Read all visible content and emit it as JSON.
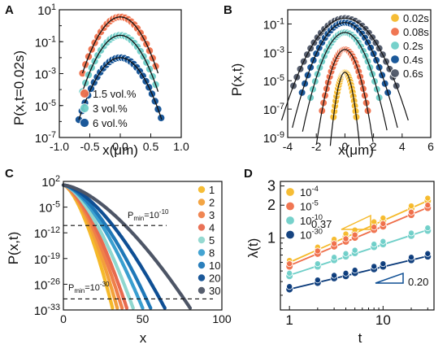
{
  "panels": {
    "A": {
      "label": "A",
      "ylabel": "P(x,t=0.02s)",
      "xlabel": "x(μm)",
      "yticks": [
        {
          "v": 1,
          "t": "10",
          "e": "1"
        },
        {
          "v": -1,
          "t": "10",
          "e": "-1"
        },
        {
          "v": -3,
          "t": "10",
          "e": "-3"
        },
        {
          "v": -5,
          "t": "10",
          "e": "-5"
        },
        {
          "v": -7,
          "t": "10",
          "e": "-7"
        }
      ],
      "xticks": [
        "-1.0",
        "-0.5",
        "0.0",
        "0.5",
        "1.0"
      ],
      "legend": [
        "1.5 vol.%",
        "3 vol.%",
        "6 vol.%"
      ]
    },
    "B": {
      "label": "B",
      "ylabel": "P(x,t)",
      "xlabel": "x(μm)",
      "yticks": [
        {
          "v": -1,
          "t": "10",
          "e": "-1"
        },
        {
          "v": -3,
          "t": "10",
          "e": "-3"
        },
        {
          "v": -5,
          "t": "10",
          "e": "-5"
        },
        {
          "v": -7,
          "t": "10",
          "e": "-7"
        },
        {
          "v": -9,
          "t": "10",
          "e": "-9"
        }
      ],
      "xticks": [
        "-4",
        "-2",
        "0",
        "2",
        "4",
        "6"
      ],
      "legend": [
        "0.02s",
        "0.08s",
        "0.2s",
        "0.4s",
        "0.6s"
      ]
    },
    "C": {
      "label": "C",
      "ylabel": "P(x,t)",
      "xlabel": "x",
      "yticks": [
        {
          "v": 2,
          "t": "10",
          "e": "2"
        },
        {
          "v": -5,
          "t": "10",
          "e": "-5"
        },
        {
          "v": -12,
          "t": "10",
          "e": "-12"
        },
        {
          "v": -19,
          "t": "10",
          "e": "-19"
        },
        {
          "v": -26,
          "t": "10",
          "e": "-26"
        },
        {
          "v": -33,
          "t": "10",
          "e": "-33"
        }
      ],
      "xticks": [
        "0",
        "50",
        "100"
      ],
      "legend": [
        "1",
        "2",
        "3",
        "4",
        "5",
        "8",
        "10",
        "20",
        "30"
      ],
      "ann_top": "P",
      "ann_top_sub": "min",
      "ann_top_rest": "=10",
      "ann_top_exp": "-10",
      "ann_bot": "P",
      "ann_bot_sub": "min",
      "ann_bot_rest": "=10",
      "ann_bot_exp": "-30"
    },
    "D": {
      "label": "D",
      "ylabel": "λ(t)",
      "xlabel": "t",
      "yticks": [
        "3",
        "2",
        "1"
      ],
      "xticks": [
        "1",
        "10"
      ],
      "legend": [
        {
          "t": "10",
          "e": "-4"
        },
        {
          "t": "10",
          "e": "-5"
        },
        {
          "t": "10",
          "e": "-10"
        },
        {
          "t": "10",
          "e": "-30"
        }
      ],
      "slope_top": "0.37",
      "slope_bot": "0.20"
    }
  },
  "colors": {
    "yellow": "#f5b92a",
    "orange": "#ef6f4a",
    "teal": "#6fcfc8",
    "blue": "#0f4f94",
    "gray": "#4d5566",
    "navy": "#0a3a7a"
  },
  "chart_data": [
    {
      "panel": "A",
      "type": "scatter",
      "xlabel": "x(μm)",
      "ylabel": "P(x,t=0.02s)",
      "xlim": [
        -1.0,
        1.0
      ],
      "ylim": [
        -7,
        1
      ],
      "yscale": "log10 (values are exponents)",
      "series": [
        {
          "name": "1.5 vol.%",
          "color": "orange",
          "peak_log": 0.55,
          "width": 0.33,
          "xrange": [
            -0.62,
            0.62
          ]
        },
        {
          "name": "3 vol.%",
          "color": "teal",
          "peak_log": -0.6,
          "width": 0.33,
          "xrange": [
            -0.62,
            0.62
          ]
        },
        {
          "name": "6 vol.%",
          "color": "blue",
          "peak_log": -2.0,
          "width": 0.345,
          "xrange": [
            -0.68,
            0.68
          ]
        }
      ]
    },
    {
      "panel": "B",
      "type": "scatter",
      "xlabel": "x(μm)",
      "ylabel": "P(x,t)",
      "xlim": [
        -4,
        6
      ],
      "ylim": [
        -9,
        0
      ],
      "yscale": "log10 (values are exponents)",
      "series": [
        {
          "name": "0.02s",
          "color": "yellow",
          "peak_log": -4.4,
          "width": 0.45,
          "xrange": [
            -0.8,
            0.8
          ]
        },
        {
          "name": "0.08s",
          "color": "orange",
          "peak_log": -2.8,
          "width": 0.77,
          "xrange": [
            -1.6,
            1.6
          ]
        },
        {
          "name": "0.2s",
          "color": "teal",
          "peak_log": -1.6,
          "width": 1.12,
          "xrange": [
            -2.4,
            2.4
          ]
        },
        {
          "name": "0.4s",
          "color": "blue",
          "peak_log": -0.9,
          "width": 1.35,
          "xrange": [
            -3.0,
            3.0
          ]
        },
        {
          "name": "0.6s",
          "color": "gray",
          "peak_log": -0.6,
          "width": 1.65,
          "xrange": [
            -3.6,
            3.6
          ]
        }
      ]
    },
    {
      "panel": "C",
      "type": "line",
      "xlabel": "x",
      "ylabel": "P(x,t)",
      "xlim": [
        0,
        100
      ],
      "ylim": [
        -33,
        2
      ],
      "yscale": "log10 (values are exponents)",
      "thresholds": [
        -10,
        -30
      ],
      "series": [
        {
          "name": "1",
          "color": "#f5b92a",
          "x_end": 31
        },
        {
          "name": "2",
          "color": "#f2a03a",
          "x_end": 34
        },
        {
          "name": "3",
          "color": "#ef7f4a",
          "x_end": 37
        },
        {
          "name": "4",
          "color": "#e86a4e",
          "x_end": 40
        },
        {
          "name": "5",
          "color": "#8fd7cf",
          "x_end": 44
        },
        {
          "name": "8",
          "color": "#3a9fd0",
          "x_end": 50
        },
        {
          "name": "10",
          "color": "#1f78b8",
          "x_end": 55
        },
        {
          "name": "20",
          "color": "#0f4f94",
          "x_end": 64
        },
        {
          "name": "30",
          "color": "#4d5566",
          "x_end": 80
        }
      ]
    },
    {
      "panel": "D",
      "type": "scatter",
      "xlabel": "t",
      "ylabel": "λ(t)",
      "xscale": "log",
      "yscale": "log",
      "xlim": [
        0.8,
        35
      ],
      "ylim": [
        0.22,
        3.3
      ],
      "t_values": [
        1,
        2,
        3,
        4,
        5,
        8,
        10,
        20,
        30
      ],
      "series": [
        {
          "name": "10^-4",
          "color": "yellow",
          "values": [
            0.59,
            0.78,
            0.92,
            1.03,
            1.12,
            1.33,
            1.44,
            1.86,
            2.19
          ]
        },
        {
          "name": "10^-5",
          "color": "orange",
          "values": [
            0.55,
            0.72,
            0.84,
            0.93,
            1.01,
            1.19,
            1.28,
            1.63,
            1.89
          ]
        },
        {
          "name": "10^-10",
          "color": "teal",
          "values": [
            0.45,
            0.55,
            0.63,
            0.68,
            0.73,
            0.83,
            0.88,
            1.05,
            1.17
          ]
        },
        {
          "name": "10^-30",
          "color": "navy",
          "values": [
            0.34,
            0.39,
            0.43,
            0.45,
            0.48,
            0.52,
            0.55,
            0.63,
            0.68
          ]
        }
      ]
    }
  ]
}
